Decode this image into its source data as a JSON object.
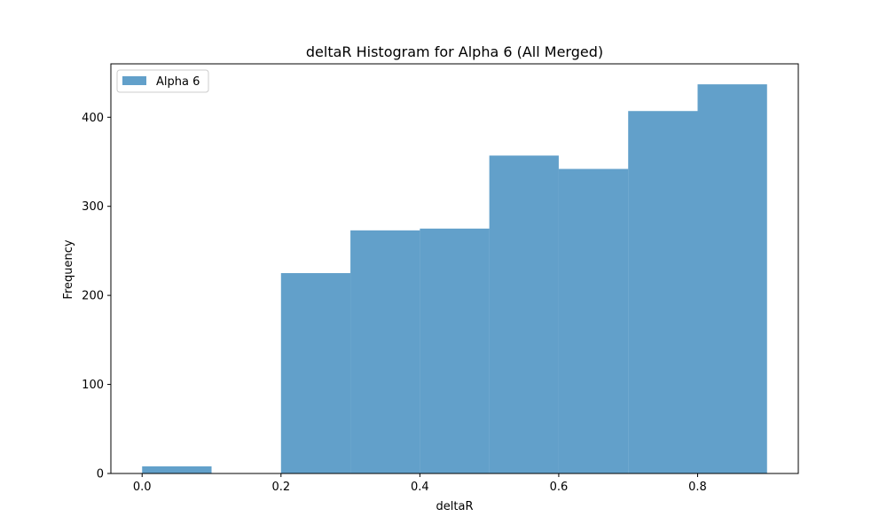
{
  "chart_data": {
    "type": "bar",
    "title": "deltaR Histogram for Alpha 6 (All Merged)",
    "xlabel": "deltaR",
    "ylabel": "Frequency",
    "xlim": [
      -0.045,
      0.945
    ],
    "ylim": [
      0,
      460
    ],
    "grid": false,
    "legend_position": "top-left",
    "x_ticks": [
      0.0,
      0.2,
      0.4,
      0.6,
      0.8
    ],
    "x_tick_labels": [
      "0.0",
      "0.2",
      "0.4",
      "0.6",
      "0.8"
    ],
    "y_ticks": [
      0,
      100,
      200,
      300,
      400
    ],
    "y_tick_labels": [
      "0",
      "100",
      "200",
      "300",
      "400"
    ],
    "bin_edges": [
      0.0,
      0.1,
      0.2,
      0.3,
      0.4,
      0.5,
      0.6,
      0.7,
      0.8,
      0.9
    ],
    "series": [
      {
        "name": "Alpha 6",
        "color": "#1f77b4",
        "opacity": 0.7,
        "values": [
          8,
          0,
          225,
          273,
          275,
          357,
          342,
          407,
          437
        ]
      }
    ]
  }
}
